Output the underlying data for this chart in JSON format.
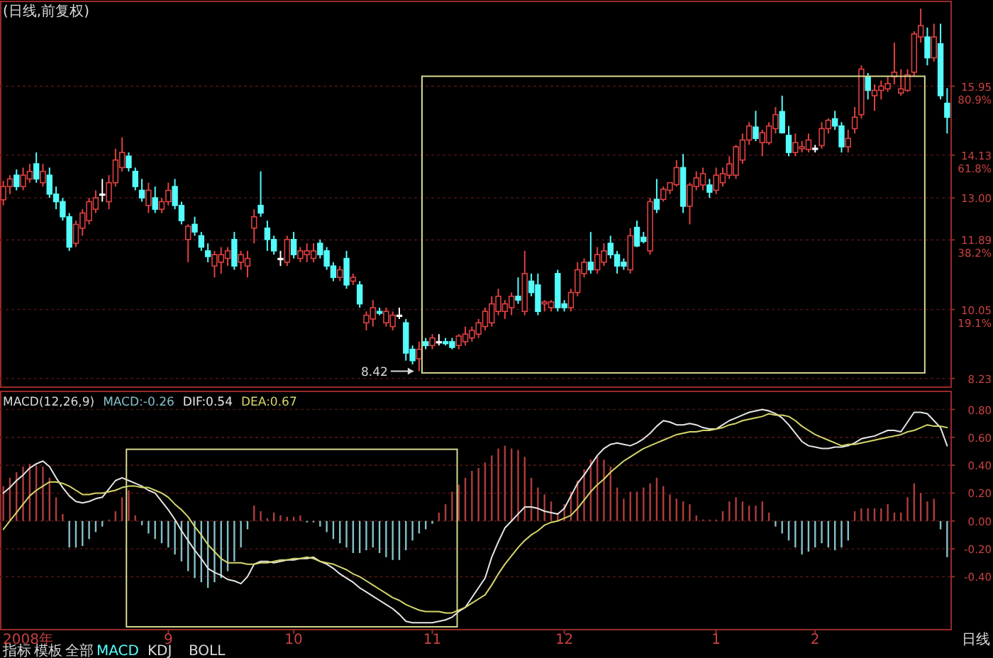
{
  "chart_data": [
    {
      "type": "candlestick",
      "title": "(日线,前复权)",
      "tick_labels": "y",
      "grid": "y",
      "ylim": [
        8.0,
        18.19
      ],
      "yticks": [
        {
          "value": 15.95,
          "label": "15.95\n80.9%"
        },
        {
          "value": 14.13,
          "label": "14.13\n61.8%"
        },
        {
          "value": 13,
          "label": "13.00"
        },
        {
          "value": 11.89,
          "label": "11.89\n38.2%"
        },
        {
          "value": 10.05,
          "label": "10.05\n19.1%"
        },
        {
          "value": 8.23,
          "label": "8.23"
        }
      ],
      "annotations": [
        "8.42"
      ],
      "categories": [
        null,
        null,
        null,
        null,
        null,
        null,
        null,
        null,
        null,
        null,
        null,
        null,
        null,
        null,
        null,
        null,
        null,
        null,
        null,
        null,
        null,
        null,
        null,
        null,
        null,
        null,
        null,
        null,
        null,
        null,
        null,
        null,
        null,
        null,
        null,
        null,
        null,
        null,
        null,
        null,
        null,
        null,
        null,
        null,
        null,
        null,
        null,
        null,
        null,
        null,
        null,
        null,
        null,
        null,
        null,
        null,
        null,
        null,
        null,
        null,
        null,
        null,
        null,
        null,
        null,
        null,
        null,
        null,
        null,
        null,
        null,
        null,
        null,
        null,
        null,
        null,
        null,
        null,
        null,
        null,
        null,
        null,
        null,
        null,
        null,
        null,
        null,
        null,
        null,
        null,
        null,
        null,
        null,
        null,
        null,
        null,
        null,
        null,
        null,
        null,
        null,
        null,
        null,
        null,
        null,
        null,
        null,
        null,
        null,
        null,
        null,
        null,
        null,
        null,
        null,
        null,
        null,
        null,
        null,
        null,
        null,
        null,
        null,
        null,
        null,
        null,
        null,
        null,
        null,
        null,
        null,
        null,
        null,
        null,
        null,
        null,
        null,
        null,
        null,
        null,
        null,
        null,
        null,
        null
      ],
      "ohlc": [
        [
          12.95,
          13.45,
          12.8,
          13.3
        ],
        [
          13.3,
          13.6,
          13.1,
          13.5
        ],
        [
          13.6,
          13.75,
          13.2,
          13.3
        ],
        [
          13.3,
          13.8,
          13.2,
          13.6
        ],
        [
          13.5,
          13.9,
          13.4,
          13.7
        ],
        [
          13.9,
          14.2,
          13.4,
          13.5
        ],
        [
          13.4,
          13.9,
          13.3,
          13.7
        ],
        [
          13.6,
          13.8,
          13.0,
          13.1
        ],
        [
          13.1,
          13.3,
          12.7,
          12.9
        ],
        [
          12.9,
          13.0,
          12.4,
          12.5
        ],
        [
          12.5,
          12.6,
          11.6,
          11.7
        ],
        [
          11.8,
          12.4,
          11.7,
          12.3
        ],
        [
          12.2,
          12.7,
          12.0,
          12.6
        ],
        [
          12.4,
          13.0,
          12.3,
          12.9
        ],
        [
          12.7,
          13.2,
          12.6,
          13.0
        ],
        [
          13.1,
          13.5,
          12.9,
          13.1
        ],
        [
          12.9,
          13.6,
          12.7,
          13.4
        ],
        [
          13.4,
          14.3,
          13.3,
          14.0
        ],
        [
          13.8,
          14.6,
          13.7,
          14.2
        ],
        [
          14.1,
          14.2,
          13.7,
          13.8
        ],
        [
          13.7,
          13.8,
          13.2,
          13.3
        ],
        [
          13.2,
          13.5,
          12.9,
          13.0
        ],
        [
          12.8,
          13.4,
          12.6,
          13.2
        ],
        [
          13.0,
          13.3,
          12.6,
          12.7
        ],
        [
          12.7,
          13.0,
          12.6,
          12.9
        ],
        [
          12.9,
          13.4,
          12.8,
          13.2
        ],
        [
          13.3,
          13.5,
          12.7,
          12.8
        ],
        [
          12.8,
          12.9,
          12.3,
          12.4
        ],
        [
          11.9,
          12.3,
          11.3,
          12.25
        ],
        [
          12.3,
          12.5,
          12.0,
          12.1
        ],
        [
          12.0,
          12.1,
          11.6,
          11.7
        ],
        [
          11.6,
          11.8,
          11.3,
          11.45
        ],
        [
          11.2,
          11.6,
          10.9,
          11.5
        ],
        [
          11.3,
          11.7,
          11.0,
          11.5
        ],
        [
          11.4,
          11.7,
          11.2,
          11.6
        ],
        [
          11.9,
          12.1,
          11.1,
          11.2
        ],
        [
          11.3,
          11.6,
          11.1,
          11.5
        ],
        [
          11.2,
          11.6,
          10.9,
          11.4
        ],
        [
          12.2,
          12.7,
          11.8,
          12.5
        ],
        [
          12.8,
          13.7,
          12.5,
          12.6
        ],
        [
          12.2,
          12.4,
          11.6,
          11.9
        ],
        [
          11.9,
          12.0,
          11.5,
          11.6
        ],
        [
          11.4,
          11.6,
          11.2,
          11.4
        ],
        [
          11.3,
          12.0,
          11.2,
          11.9
        ],
        [
          11.9,
          12.1,
          11.4,
          11.5
        ],
        [
          11.4,
          11.7,
          11.3,
          11.6
        ],
        [
          11.5,
          11.8,
          11.3,
          11.6
        ],
        [
          11.4,
          11.8,
          11.3,
          11.6
        ],
        [
          11.8,
          11.9,
          11.4,
          11.5
        ],
        [
          11.6,
          11.7,
          11.1,
          11.2
        ],
        [
          11.2,
          11.3,
          10.8,
          10.9
        ],
        [
          10.9,
          11.2,
          10.8,
          11.1
        ],
        [
          11.4,
          11.6,
          10.6,
          10.7
        ],
        [
          10.8,
          11.0,
          10.7,
          10.9
        ],
        [
          10.7,
          10.8,
          10.1,
          10.2
        ],
        [
          9.7,
          10.0,
          9.5,
          9.9
        ],
        [
          9.8,
          10.3,
          9.6,
          10.1
        ],
        [
          10.0,
          10.1,
          9.9,
          9.95
        ],
        [
          9.7,
          10.1,
          9.6,
          10.0
        ],
        [
          9.6,
          10.0,
          9.5,
          9.9
        ],
        [
          9.9,
          10.1,
          9.8,
          9.9
        ],
        [
          9.7,
          9.8,
          8.7,
          8.9
        ],
        [
          9.0,
          9.1,
          8.6,
          8.7
        ],
        [
          8.75,
          9.2,
          8.42,
          9.0
        ],
        [
          9.2,
          9.3,
          9.0,
          9.1
        ],
        [
          9.1,
          9.4,
          9.0,
          9.3
        ],
        [
          9.2,
          9.4,
          9.1,
          9.2
        ],
        [
          9.2,
          9.3,
          9.1,
          9.15
        ],
        [
          9.2,
          9.3,
          9.0,
          9.05
        ],
        [
          9.1,
          9.4,
          9.0,
          9.35
        ],
        [
          9.2,
          9.6,
          9.1,
          9.4
        ],
        [
          9.3,
          9.6,
          9.2,
          9.5
        ],
        [
          9.4,
          9.8,
          9.3,
          9.7
        ],
        [
          9.6,
          10.1,
          9.5,
          10.0
        ],
        [
          9.7,
          10.4,
          9.6,
          10.2
        ],
        [
          10.0,
          10.6,
          9.9,
          10.4
        ],
        [
          10.0,
          10.3,
          9.8,
          10.2
        ],
        [
          10.1,
          10.5,
          9.9,
          10.4
        ],
        [
          10.4,
          10.9,
          10.2,
          10.3
        ],
        [
          10.0,
          11.6,
          9.9,
          11.0
        ],
        [
          10.8,
          11.0,
          10.4,
          10.5
        ],
        [
          10.7,
          11.0,
          9.9,
          10.0
        ],
        [
          10.2,
          10.3,
          10.0,
          10.25
        ],
        [
          10.1,
          10.3,
          10.0,
          10.25
        ],
        [
          11.0,
          11.1,
          10.0,
          10.1
        ],
        [
          10.2,
          10.3,
          10.0,
          10.1
        ],
        [
          10.1,
          10.6,
          10.0,
          10.5
        ],
        [
          10.5,
          11.3,
          10.4,
          11.1
        ],
        [
          11.0,
          11.4,
          10.9,
          11.3
        ],
        [
          11.3,
          12.1,
          11.0,
          11.1
        ],
        [
          11.1,
          11.7,
          11.0,
          11.5
        ],
        [
          11.3,
          11.8,
          11.2,
          11.6
        ],
        [
          11.8,
          12.0,
          11.4,
          11.5
        ],
        [
          11.5,
          11.6,
          11.0,
          11.2
        ],
        [
          11.3,
          11.4,
          11.1,
          11.2
        ],
        [
          11.1,
          12.2,
          11.0,
          12.0
        ],
        [
          12.22,
          12.4,
          11.7,
          11.73
        ],
        [
          11.96,
          12.1,
          11.8,
          11.85
        ],
        [
          11.6,
          13.0,
          11.5,
          12.9
        ],
        [
          12.96,
          13.5,
          12.6,
          12.7
        ],
        [
          12.96,
          13.3,
          12.9,
          13.23
        ],
        [
          13.2,
          13.4,
          13.1,
          13.4
        ],
        [
          13.35,
          14.0,
          13.3,
          13.8
        ],
        [
          13.8,
          14.16,
          12.6,
          12.78
        ],
        [
          12.78,
          13.4,
          12.3,
          13.34
        ],
        [
          13.3,
          13.7,
          13.2,
          13.53
        ],
        [
          13.34,
          13.8,
          13.2,
          13.64
        ],
        [
          13.34,
          13.5,
          13.0,
          13.15
        ],
        [
          13.2,
          13.8,
          13.1,
          13.6
        ],
        [
          13.4,
          13.8,
          13.3,
          13.64
        ],
        [
          13.6,
          14.1,
          13.5,
          13.9
        ],
        [
          13.6,
          14.4,
          13.5,
          14.35
        ],
        [
          14.0,
          14.7,
          13.9,
          14.53
        ],
        [
          14.53,
          15.0,
          14.4,
          14.9
        ],
        [
          14.87,
          15.3,
          14.5,
          14.57
        ],
        [
          14.46,
          14.8,
          14.1,
          14.72
        ],
        [
          14.46,
          15.0,
          14.4,
          14.9
        ],
        [
          14.83,
          15.4,
          14.7,
          15.2
        ],
        [
          15.28,
          15.7,
          14.7,
          14.72
        ],
        [
          14.65,
          14.9,
          14.1,
          14.2
        ],
        [
          14.2,
          14.7,
          14.1,
          14.46
        ],
        [
          14.3,
          14.5,
          14.2,
          14.35
        ],
        [
          14.28,
          14.7,
          14.2,
          14.53
        ],
        [
          14.31,
          14.4,
          14.2,
          14.31
        ],
        [
          14.38,
          15.0,
          14.3,
          14.83
        ],
        [
          14.83,
          15.1,
          14.7,
          15.05
        ],
        [
          15.09,
          15.3,
          14.8,
          14.9
        ],
        [
          14.9,
          15.0,
          14.2,
          14.35
        ],
        [
          14.35,
          14.8,
          14.2,
          14.57
        ],
        [
          14.83,
          15.4,
          14.7,
          15.13
        ],
        [
          15.2,
          16.5,
          15.1,
          16.4
        ],
        [
          16.2,
          16.3,
          15.6,
          15.84
        ],
        [
          15.7,
          16.0,
          15.3,
          15.84
        ],
        [
          15.84,
          16.1,
          15.6,
          15.95
        ],
        [
          15.88,
          16.2,
          15.8,
          16.02
        ],
        [
          16.2,
          17.1,
          16.0,
          16.32
        ],
        [
          15.77,
          16.4,
          15.7,
          15.88
        ],
        [
          15.84,
          16.4,
          15.8,
          16.25
        ],
        [
          16.32,
          17.4,
          16.2,
          17.33
        ],
        [
          17.25,
          18.0,
          17.1,
          17.55
        ],
        [
          17.25,
          17.5,
          16.5,
          16.7
        ],
        [
          16.7,
          17.6,
          16.6,
          17.25
        ],
        [
          17.07,
          17.6,
          15.6,
          15.7
        ],
        [
          15.5,
          15.9,
          14.7,
          15.13
        ]
      ],
      "colors": [
        "#e04040",
        "#e04040",
        "#54fcfc",
        "#e04040",
        "#e04040",
        "#54fcfc",
        "#e04040",
        "#54fcfc",
        "#54fcfc",
        "#54fcfc",
        "#54fcfc",
        "#e04040",
        "#e04040",
        "#e04040",
        "#e04040",
        "#ffffff",
        "#e04040",
        "#e04040",
        "#e04040",
        "#54fcfc",
        "#54fcfc",
        "#54fcfc",
        "#e04040",
        "#54fcfc",
        "#e04040",
        "#e04040",
        "#54fcfc",
        "#54fcfc",
        "#e04040",
        "#54fcfc",
        "#54fcfc",
        "#54fcfc",
        "#e04040",
        "#e04040",
        "#e04040",
        "#54fcfc",
        "#e04040",
        "#e04040",
        "#e04040",
        "#54fcfc",
        "#54fcfc",
        "#54fcfc",
        "#ffffff",
        "#e04040",
        "#54fcfc",
        "#e04040",
        "#e04040",
        "#e04040",
        "#54fcfc",
        "#54fcfc",
        "#54fcfc",
        "#e04040",
        "#54fcfc",
        "#e04040",
        "#54fcfc",
        "#e04040",
        "#e04040",
        "#54fcfc",
        "#e04040",
        "#e04040",
        "#ffffff",
        "#54fcfc",
        "#54fcfc",
        "#e04040",
        "#54fcfc",
        "#e04040",
        "#ffffff",
        "#54fcfc",
        "#54fcfc",
        "#e04040",
        "#e04040",
        "#e04040",
        "#e04040",
        "#e04040",
        "#e04040",
        "#e04040",
        "#e04040",
        "#e04040",
        "#54fcfc",
        "#e04040",
        "#54fcfc",
        "#54fcfc",
        "#e04040",
        "#e04040",
        "#54fcfc",
        "#54fcfc",
        "#e04040",
        "#e04040",
        "#e04040",
        "#54fcfc",
        "#e04040",
        "#e04040",
        "#54fcfc",
        "#54fcfc",
        "#54fcfc",
        "#e04040",
        "#54fcfc",
        "#54fcfc",
        "#e04040",
        "#54fcfc",
        "#e04040",
        "#e04040",
        "#e04040",
        "#54fcfc",
        "#e04040",
        "#e04040",
        "#e04040",
        "#54fcfc",
        "#e04040",
        "#e04040",
        "#e04040",
        "#e04040",
        "#e04040",
        "#e04040",
        "#54fcfc",
        "#e04040",
        "#e04040",
        "#e04040",
        "#54fcfc",
        "#54fcfc",
        "#e04040",
        "#e04040",
        "#e04040",
        "#ffffff",
        "#e04040",
        "#e04040",
        "#54fcfc",
        "#54fcfc",
        "#e04040",
        "#e04040",
        "#e04040",
        "#54fcfc",
        "#e04040",
        "#e04040",
        "#e04040",
        "#e04040",
        "#e04040",
        "#e04040",
        "#e04040",
        "#e04040",
        "#54fcfc",
        "#e04040",
        "#54fcfc",
        "#54fcfc"
      ]
    },
    {
      "type": "bar",
      "title": "MACD(12,26,9)",
      "legend": "top left",
      "grid": "y",
      "ylim": [
        -0.78,
        0.93
      ],
      "yticks": [
        {
          "value": 0.8,
          "label": "0.80"
        },
        {
          "value": 0.6,
          "label": "0.60"
        },
        {
          "value": 0.4,
          "label": "0.40"
        },
        {
          "value": 0.2,
          "label": "0.20"
        },
        {
          "value": 0,
          "label": "0.00"
        },
        {
          "value": -0.2,
          "label": "-0.20"
        },
        {
          "value": -0.4,
          "label": "-0.40"
        }
      ],
      "annotations": [
        "2008年",
        "指标",
        "模板",
        "全部",
        "MACD",
        "KDJ",
        "BOLL",
        "日线"
      ],
      "categories": [
        null,
        null,
        null,
        null,
        null,
        null,
        null,
        null,
        null,
        null,
        null,
        null,
        null,
        null,
        null,
        null,
        null,
        null,
        null,
        null,
        null,
        null,
        null,
        null,
        null,
        "9",
        null,
        null,
        null,
        null,
        null,
        null,
        null,
        null,
        null,
        null,
        null,
        null,
        null,
        null,
        null,
        null,
        null,
        null,
        "10",
        null,
        null,
        null,
        null,
        null,
        null,
        null,
        null,
        null,
        null,
        null,
        null,
        null,
        null,
        null,
        null,
        null,
        null,
        null,
        null,
        "11",
        null,
        null,
        null,
        null,
        null,
        null,
        null,
        null,
        null,
        null,
        null,
        null,
        null,
        null,
        null,
        null,
        null,
        null,
        null,
        "12",
        null,
        null,
        null,
        null,
        null,
        null,
        null,
        null,
        null,
        null,
        null,
        null,
        null,
        null,
        null,
        null,
        null,
        null,
        null,
        null,
        null,
        null,
        "1",
        null,
        null,
        null,
        null,
        null,
        null,
        null,
        null,
        null,
        null,
        null,
        null,
        null,
        null,
        "2",
        null,
        null,
        null,
        null,
        null,
        null,
        null,
        null,
        null,
        null,
        null,
        null,
        null,
        null,
        null,
        null,
        null,
        null,
        null,
        null
      ],
      "series": [
        {
          "name": "MACD:-0.26",
          "values": [
            0.25,
            0.31,
            0.35,
            0.39,
            0.41,
            0.4,
            0.39,
            0.31,
            0.17,
            0.05,
            -0.19,
            -0.19,
            -0.18,
            -0.13,
            -0.08,
            -0.04,
            0.01,
            0.07,
            0.17,
            0.22,
            0.04,
            -0.03,
            -0.09,
            -0.13,
            -0.16,
            -0.19,
            -0.24,
            -0.29,
            -0.36,
            -0.41,
            -0.44,
            -0.48,
            -0.44,
            -0.41,
            -0.36,
            -0.29,
            -0.19,
            -0.06,
            0.11,
            0.07,
            0.02,
            0.06,
            0.04,
            0.03,
            0.03,
            0.04,
            -0.01,
            -0.01,
            -0.04,
            -0.08,
            -0.13,
            -0.16,
            -0.19,
            -0.23,
            -0.23,
            -0.21,
            -0.19,
            -0.23,
            -0.26,
            -0.28,
            -0.28,
            -0.21,
            -0.14,
            -0.09,
            -0.06,
            -0.02,
            0.06,
            0.12,
            0.21,
            0.26,
            0.31,
            0.36,
            0.38,
            0.42,
            0.47,
            0.52,
            0.54,
            0.52,
            0.51,
            0.46,
            0.31,
            0.24,
            0.19,
            0.14,
            0.06,
            0.12,
            0.21,
            0.29,
            0.37,
            0.44,
            0.46,
            0.44,
            0.39,
            0.24,
            0.16,
            0.21,
            0.21,
            0.24,
            0.27,
            0.31,
            0.25,
            0.19,
            0.16,
            0.14,
            0.12,
            0.04,
            0.01,
            0.01,
            0.01,
            0.07,
            0.14,
            0.17,
            0.14,
            0.11,
            0.11,
            0.14,
            0.06,
            -0.04,
            -0.09,
            -0.14,
            -0.19,
            -0.24,
            -0.22,
            -0.19,
            -0.16,
            -0.19,
            -0.21,
            -0.19,
            -0.14,
            0.07,
            0.09,
            0.09,
            0.09,
            0.09,
            0.12,
            0.06,
            0.06,
            0.17,
            0.27,
            0.2,
            0.14,
            0.16,
            -0.06,
            -0.26
          ],
          "colors": [
            "#b03c3c",
            "#b03c3c",
            "#b03c3c",
            "#b03c3c",
            "#b03c3c",
            "#b03c3c",
            "#b03c3c",
            "#b03c3c",
            "#b03c3c",
            "#b03c3c",
            "#84c0c8",
            "#84c0c8",
            "#84c0c8",
            "#84c0c8",
            "#84c0c8",
            "#84c0c8",
            "#b03c3c",
            "#b03c3c",
            "#b03c3c",
            "#b03c3c",
            "#b03c3c",
            "#84c0c8",
            "#84c0c8",
            "#84c0c8",
            "#84c0c8",
            "#84c0c8",
            "#84c0c8",
            "#84c0c8",
            "#84c0c8",
            "#84c0c8",
            "#84c0c8",
            "#84c0c8",
            "#84c0c8",
            "#84c0c8",
            "#84c0c8",
            "#84c0c8",
            "#84c0c8",
            "#84c0c8",
            "#b03c3c",
            "#b03c3c",
            "#b03c3c",
            "#b03c3c",
            "#b03c3c",
            "#b03c3c",
            "#b03c3c",
            "#b03c3c",
            "#84c0c8",
            "#84c0c8",
            "#84c0c8",
            "#84c0c8",
            "#84c0c8",
            "#84c0c8",
            "#84c0c8",
            "#84c0c8",
            "#84c0c8",
            "#84c0c8",
            "#84c0c8",
            "#84c0c8",
            "#84c0c8",
            "#84c0c8",
            "#84c0c8",
            "#84c0c8",
            "#84c0c8",
            "#84c0c8",
            "#84c0c8",
            "#84c0c8",
            "#b03c3c",
            "#b03c3c",
            "#b03c3c",
            "#b03c3c",
            "#b03c3c",
            "#b03c3c",
            "#b03c3c",
            "#b03c3c",
            "#b03c3c",
            "#b03c3c",
            "#b03c3c",
            "#b03c3c",
            "#b03c3c",
            "#b03c3c",
            "#b03c3c",
            "#b03c3c",
            "#b03c3c",
            "#b03c3c",
            "#b03c3c",
            "#b03c3c",
            "#b03c3c",
            "#b03c3c",
            "#b03c3c",
            "#b03c3c",
            "#b03c3c",
            "#b03c3c",
            "#b03c3c",
            "#b03c3c",
            "#b03c3c",
            "#b03c3c",
            "#b03c3c",
            "#b03c3c",
            "#b03c3c",
            "#b03c3c",
            "#b03c3c",
            "#b03c3c",
            "#b03c3c",
            "#b03c3c",
            "#b03c3c",
            "#b03c3c",
            "#b03c3c",
            "#b03c3c",
            "#b03c3c",
            "#b03c3c",
            "#b03c3c",
            "#b03c3c",
            "#b03c3c",
            "#b03c3c",
            "#b03c3c",
            "#b03c3c",
            "#b03c3c",
            "#84c0c8",
            "#84c0c8",
            "#84c0c8",
            "#84c0c8",
            "#84c0c8",
            "#84c0c8",
            "#84c0c8",
            "#84c0c8",
            "#84c0c8",
            "#84c0c8",
            "#84c0c8",
            "#84c0c8",
            "#b03c3c",
            "#b03c3c",
            "#b03c3c",
            "#b03c3c",
            "#b03c3c",
            "#b03c3c",
            "#b03c3c",
            "#b03c3c",
            "#b03c3c",
            "#b03c3c",
            "#b03c3c",
            "#b03c3c",
            "#b03c3c",
            "#84c0c8",
            "#84c0c8"
          ]
        },
        {
          "name": "DIF:0.54",
          "type": "line",
          "color": "#e6e6e6",
          "values": [
            0.2,
            0.24,
            0.29,
            0.33,
            0.38,
            0.41,
            0.43,
            0.39,
            0.31,
            0.24,
            0.18,
            0.14,
            0.13,
            0.14,
            0.16,
            0.17,
            0.23,
            0.29,
            0.31,
            0.29,
            0.27,
            0.25,
            0.22,
            0.2,
            0.14,
            0.08,
            0.01,
            -0.07,
            -0.14,
            -0.21,
            -0.27,
            -0.34,
            -0.37,
            -0.39,
            -0.42,
            -0.43,
            -0.45,
            -0.4,
            -0.31,
            -0.29,
            -0.29,
            -0.3,
            -0.29,
            -0.28,
            -0.28,
            -0.27,
            -0.27,
            -0.26,
            -0.29,
            -0.31,
            -0.34,
            -0.38,
            -0.41,
            -0.44,
            -0.48,
            -0.51,
            -0.54,
            -0.57,
            -0.6,
            -0.63,
            -0.67,
            -0.72,
            -0.73,
            -0.73,
            -0.73,
            -0.73,
            -0.72,
            -0.71,
            -0.69,
            -0.65,
            -0.62,
            -0.55,
            -0.48,
            -0.41,
            -0.26,
            -0.15,
            -0.05,
            0.0,
            0.05,
            0.1,
            0.1,
            0.09,
            0.07,
            0.06,
            0.05,
            0.09,
            0.18,
            0.27,
            0.33,
            0.4,
            0.47,
            0.52,
            0.55,
            0.56,
            0.55,
            0.54,
            0.56,
            0.59,
            0.63,
            0.68,
            0.72,
            0.71,
            0.69,
            0.69,
            0.7,
            0.69,
            0.67,
            0.66,
            0.66,
            0.69,
            0.72,
            0.74,
            0.76,
            0.78,
            0.79,
            0.8,
            0.79,
            0.77,
            0.74,
            0.69,
            0.63,
            0.57,
            0.54,
            0.53,
            0.52,
            0.52,
            0.53,
            0.53,
            0.54,
            0.56,
            0.59,
            0.6,
            0.61,
            0.63,
            0.65,
            0.65,
            0.64,
            0.71,
            0.78,
            0.78,
            0.77,
            0.72,
            0.67,
            0.54
          ]
        },
        {
          "name": "DEA:0.67",
          "type": "line",
          "color": "#d6d66a",
          "values": [
            -0.06,
            0.0,
            0.06,
            0.12,
            0.18,
            0.22,
            0.25,
            0.28,
            0.28,
            0.27,
            0.25,
            0.22,
            0.19,
            0.19,
            0.2,
            0.2,
            0.21,
            0.22,
            0.24,
            0.25,
            0.25,
            0.24,
            0.24,
            0.22,
            0.2,
            0.17,
            0.12,
            0.08,
            0.03,
            -0.04,
            -0.1,
            -0.17,
            -0.22,
            -0.27,
            -0.3,
            -0.3,
            -0.3,
            -0.31,
            -0.31,
            -0.3,
            -0.3,
            -0.29,
            -0.28,
            -0.28,
            -0.27,
            -0.27,
            -0.26,
            -0.27,
            -0.29,
            -0.3,
            -0.31,
            -0.33,
            -0.35,
            -0.38,
            -0.4,
            -0.43,
            -0.46,
            -0.49,
            -0.52,
            -0.55,
            -0.57,
            -0.6,
            -0.62,
            -0.64,
            -0.65,
            -0.65,
            -0.65,
            -0.66,
            -0.66,
            -0.64,
            -0.62,
            -0.59,
            -0.56,
            -0.53,
            -0.46,
            -0.38,
            -0.31,
            -0.25,
            -0.19,
            -0.14,
            -0.1,
            -0.07,
            -0.03,
            -0.01,
            0.0,
            0.02,
            0.04,
            0.09,
            0.15,
            0.21,
            0.26,
            0.3,
            0.35,
            0.39,
            0.43,
            0.46,
            0.49,
            0.52,
            0.54,
            0.56,
            0.58,
            0.6,
            0.62,
            0.63,
            0.64,
            0.64,
            0.65,
            0.65,
            0.66,
            0.67,
            0.69,
            0.7,
            0.72,
            0.73,
            0.74,
            0.75,
            0.77,
            0.76,
            0.76,
            0.75,
            0.72,
            0.68,
            0.65,
            0.62,
            0.6,
            0.58,
            0.56,
            0.54,
            0.55,
            0.55,
            0.56,
            0.57,
            0.58,
            0.59,
            0.6,
            0.61,
            0.62,
            0.64,
            0.65,
            0.67,
            0.69,
            0.68,
            0.68,
            0.67
          ]
        }
      ]
    }
  ]
}
